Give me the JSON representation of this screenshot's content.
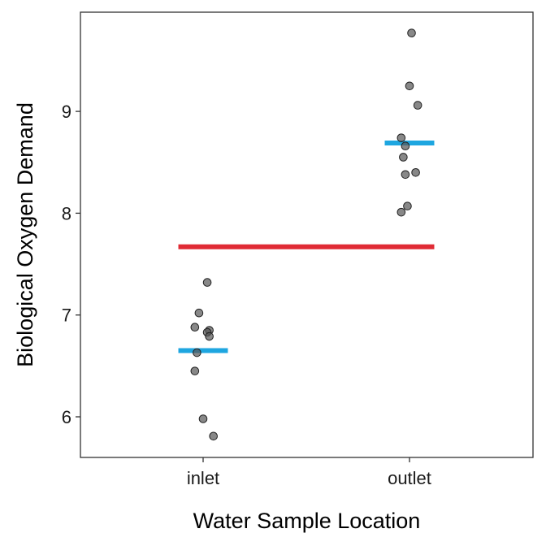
{
  "chart_data": {
    "type": "scatter",
    "title": "",
    "xlabel": "Water Sample Location",
    "ylabel": "Biological Oxygen Demand",
    "categories": [
      "inlet",
      "outlet"
    ],
    "ylim": [
      5.6,
      9.95
    ],
    "yticks": [
      6,
      7,
      8,
      9
    ],
    "grid": false,
    "legend": "none",
    "series": [
      {
        "category": "inlet",
        "points": [
          {
            "x": 0.02,
            "y": 7.32
          },
          {
            "x": -0.02,
            "y": 7.02
          },
          {
            "x": -0.04,
            "y": 6.88
          },
          {
            "x": 0.03,
            "y": 6.85
          },
          {
            "x": 0.02,
            "y": 6.83
          },
          {
            "x": 0.03,
            "y": 6.79
          },
          {
            "x": -0.03,
            "y": 6.63
          },
          {
            "x": -0.04,
            "y": 6.45
          },
          {
            "x": 0.0,
            "y": 5.98
          },
          {
            "x": 0.05,
            "y": 5.81
          }
        ],
        "mean": 6.65
      },
      {
        "category": "outlet",
        "points": [
          {
            "x": 0.01,
            "y": 9.77
          },
          {
            "x": 0.0,
            "y": 9.25
          },
          {
            "x": 0.04,
            "y": 9.06
          },
          {
            "x": -0.04,
            "y": 8.74
          },
          {
            "x": -0.02,
            "y": 8.66
          },
          {
            "x": -0.03,
            "y": 8.55
          },
          {
            "x": -0.02,
            "y": 8.38
          },
          {
            "x": 0.03,
            "y": 8.4
          },
          {
            "x": -0.01,
            "y": 8.07
          },
          {
            "x": -0.04,
            "y": 8.01
          }
        ],
        "mean": 8.69
      }
    ],
    "grand_mean": 7.67,
    "colors": {
      "point_fill": "#555555",
      "point_stroke": "#222222",
      "group_mean": "#1ea6e0",
      "grand_mean": "#e02b35",
      "axis": "#333333"
    }
  }
}
